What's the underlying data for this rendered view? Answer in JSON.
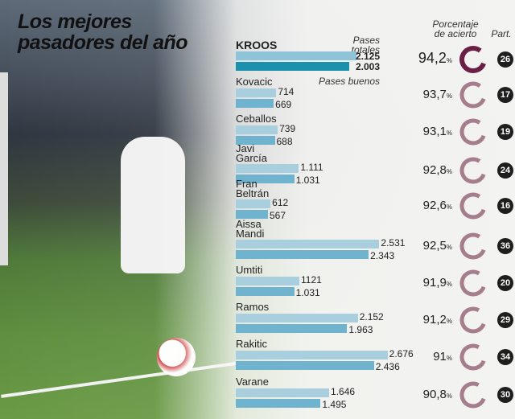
{
  "title": [
    "Los mejores",
    "pasadores del año"
  ],
  "headers": {
    "totales": "Pases totales",
    "buenos": "Pases buenos",
    "porcentaje": [
      "Porcentaje",
      "de acierto"
    ],
    "partidos": "Part."
  },
  "colors": {
    "total_bar": "#a9cfdf",
    "good_bar": "#6fb3cf",
    "kroos_total": "#8fc3d8",
    "kroos_good": "#1b91ad",
    "ring_highlight": "#6b1f45",
    "ring": "#a67d8c"
  },
  "chart_data": {
    "type": "bar",
    "categories": [
      "KROOS",
      "Kovacic",
      "Ceballos",
      "Javi\nGarcía",
      "Fran\nBeltrán",
      "Aissa\nMandi",
      "Umtiti",
      "Ramos",
      "Rakitic",
      "Varane"
    ],
    "series": [
      {
        "name": "Pases totales",
        "values": [
          2125,
          714,
          739,
          1111,
          612,
          2531,
          1121,
          2152,
          2676,
          1646
        ],
        "labels": [
          "2.125",
          "714",
          "739",
          "1.111",
          "612",
          "2.531",
          "1121",
          "2.152",
          "2.676",
          "1.646"
        ]
      },
      {
        "name": "Pases buenos",
        "values": [
          2003,
          669,
          688,
          1031,
          567,
          2343,
          1031,
          1963,
          2436,
          1495
        ],
        "labels": [
          "2.003",
          "669",
          "688",
          "1.031",
          "567",
          "2.343",
          "1.031",
          "1.963",
          "2.436",
          "1.495"
        ]
      }
    ],
    "percent_labels": [
      "94,2",
      "93,7",
      "93,1",
      "92,8",
      "92,6",
      "92,5",
      "91,9",
      "91,2",
      "91",
      "90,8"
    ],
    "percent_values": [
      94.2,
      93.7,
      93.1,
      92.8,
      92.6,
      92.5,
      91.9,
      91.2,
      91,
      90.8
    ],
    "percent_unit": "%",
    "matches": [
      "26",
      "17",
      "19",
      "24",
      "16",
      "36",
      "20",
      "29",
      "34",
      "30"
    ]
  }
}
